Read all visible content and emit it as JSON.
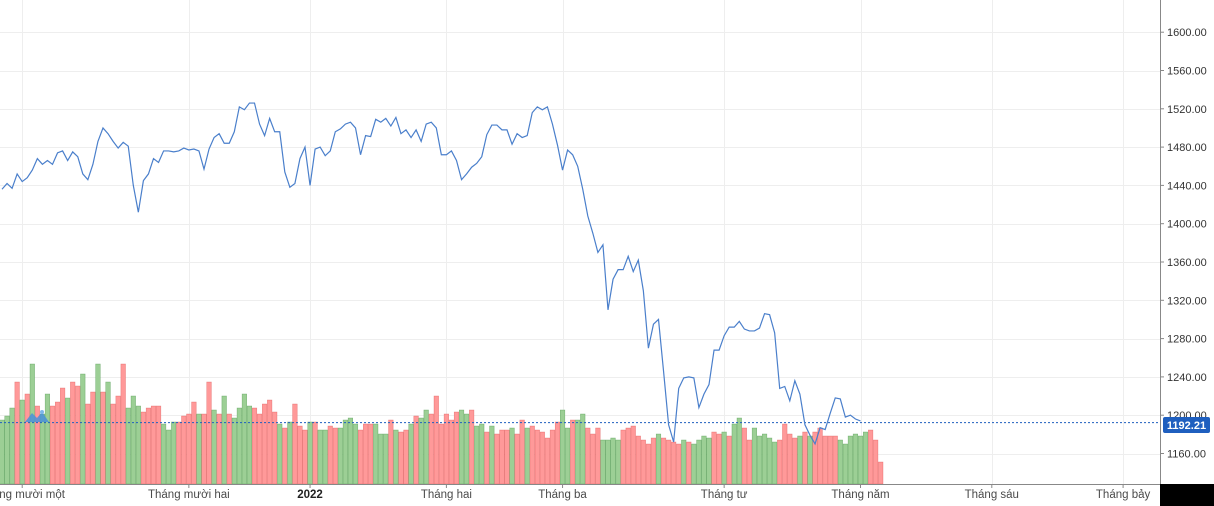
{
  "chart_data": {
    "type": "line",
    "title": "",
    "xlabel": "",
    "ylabel": "",
    "ylim": [
      1140,
      1640
    ],
    "y_ticks": [
      1160,
      1200,
      1240,
      1280,
      1320,
      1360,
      1400,
      1440,
      1480,
      1520,
      1560,
      1600
    ],
    "y_tick_labels": [
      "1160.00",
      "1200.00",
      "1240.00",
      "1280.00",
      "1320.00",
      "1360.00",
      "1400.00",
      "1440.00",
      "1480.00",
      "1520.00",
      "1560.00",
      "1600.00"
    ],
    "x_labels": [
      "Tháng mười một",
      "Tháng mười hai",
      "2022",
      "Tháng hai",
      "Tháng ba",
      "Tháng tư",
      "Tháng năm",
      "Tháng sáu",
      "Tháng bảy"
    ],
    "x_label_index": [
      4,
      37,
      61,
      88,
      111,
      143,
      170,
      196,
      222
    ],
    "last_value": 1192.21,
    "last_value_label": "1192.21",
    "grid": true,
    "colors": {
      "line": "#4a7fcb",
      "volume_up": "#9ccf95",
      "volume_down": "#ff9999",
      "volume_up_edge": "#3f8f3f",
      "volume_down_edge": "#d94b4b",
      "label_bg": "#1f5fbf",
      "grid": "#eeeeee"
    },
    "series": [
      {
        "values": [
          1436,
          1442,
          1437,
          1452,
          1444,
          1448,
          1456,
          1468,
          1462,
          1466,
          1462,
          1474,
          1476,
          1466,
          1475,
          1470,
          1452,
          1446,
          1462,
          1486,
          1500,
          1494,
          1486,
          1479,
          1485,
          1481,
          1440,
          1412,
          1445,
          1452,
          1468,
          1464,
          1476,
          1476,
          1475,
          1476,
          1479,
          1477,
          1478,
          1476,
          1457,
          1478,
          1490,
          1494,
          1484,
          1484,
          1496,
          1522,
          1519,
          1526,
          1526,
          1504,
          1492,
          1510,
          1496,
          1496,
          1454,
          1438,
          1442,
          1468,
          1480,
          1440,
          1478,
          1480,
          1471,
          1476,
          1496,
          1499,
          1504,
          1506,
          1500,
          1472,
          1492,
          1491,
          1509,
          1506,
          1510,
          1502,
          1511,
          1494,
          1498,
          1490,
          1498,
          1486,
          1504,
          1506,
          1500,
          1472,
          1472,
          1476,
          1466,
          1446,
          1452,
          1459,
          1463,
          1470,
          1493,
          1503,
          1503,
          1498,
          1498,
          1483,
          1494,
          1490,
          1492,
          1516,
          1522,
          1519,
          1522,
          1504,
          1482,
          1456,
          1477,
          1472,
          1460,
          1436,
          1408,
          1390,
          1370,
          1378,
          1310,
          1342,
          1352,
          1352,
          1366,
          1350,
          1362,
          1330,
          1270,
          1295,
          1300,
          1246,
          1190,
          1172,
          1228,
          1239,
          1240,
          1239,
          1208,
          1222,
          1232,
          1268,
          1268,
          1283,
          1292,
          1292,
          1298,
          1290,
          1288,
          1288,
          1291,
          1306,
          1305,
          1286,
          1228,
          1230,
          1215,
          1236,
          1222,
          1190,
          1179,
          1170,
          1187,
          1185,
          1202,
          1218,
          1217,
          1198,
          1200,
          1196,
          1194
        ]
      }
    ],
    "volume": {
      "directions": [
        "u",
        "u",
        "u",
        "d",
        "u",
        "d",
        "u",
        "d",
        "u",
        "u",
        "d",
        "d",
        "d",
        "u",
        "d",
        "d",
        "u",
        "d",
        "d",
        "u",
        "d",
        "u",
        "d",
        "d",
        "d",
        "u",
        "u",
        "u",
        "d",
        "d",
        "d",
        "d",
        "u",
        "u",
        "u",
        "d",
        "d",
        "d",
        "d",
        "u",
        "d",
        "d",
        "u",
        "d",
        "u",
        "d",
        "u",
        "u",
        "u",
        "u",
        "d",
        "d",
        "d",
        "d",
        "d",
        "u",
        "d",
        "u",
        "d",
        "d",
        "d",
        "u",
        "d",
        "u",
        "u",
        "d",
        "d",
        "u",
        "u",
        "u",
        "u",
        "d",
        "d",
        "d",
        "u",
        "u",
        "u",
        "d",
        "u",
        "d",
        "d",
        "u",
        "d",
        "u",
        "u",
        "d",
        "d",
        "d",
        "d",
        "d",
        "d",
        "u",
        "u",
        "d",
        "u",
        "u",
        "d",
        "u",
        "d",
        "d",
        "d",
        "u",
        "d",
        "d",
        "u",
        "d",
        "d",
        "d",
        "d",
        "d",
        "d",
        "u",
        "u",
        "d",
        "u",
        "u",
        "d",
        "d",
        "d",
        "u",
        "u",
        "u",
        "u",
        "d",
        "d",
        "d",
        "d",
        "d",
        "d",
        "d",
        "u",
        "d",
        "d",
        "d",
        "d",
        "u",
        "d",
        "u",
        "u",
        "u",
        "u",
        "d",
        "d",
        "u",
        "d",
        "u",
        "u",
        "d",
        "d",
        "u",
        "u",
        "u",
        "u",
        "u",
        "d",
        "d",
        "d",
        "d",
        "u",
        "d",
        "u",
        "d",
        "d",
        "d",
        "d",
        "d",
        "u",
        "u",
        "u",
        "u",
        "u",
        "u",
        "d",
        "d",
        "d"
      ],
      "values": [
        0.32,
        0.34,
        0.38,
        0.51,
        0.42,
        0.45,
        0.6,
        0.39,
        0.35,
        0.45,
        0.39,
        0.41,
        0.48,
        0.43,
        0.51,
        0.49,
        0.55,
        0.4,
        0.46,
        0.6,
        0.46,
        0.51,
        0.4,
        0.44,
        0.6,
        0.38,
        0.44,
        0.39,
        0.36,
        0.38,
        0.39,
        0.39,
        0.3,
        0.27,
        0.31,
        0.31,
        0.34,
        0.35,
        0.41,
        0.35,
        0.35,
        0.51,
        0.37,
        0.35,
        0.44,
        0.35,
        0.33,
        0.38,
        0.45,
        0.39,
        0.38,
        0.35,
        0.4,
        0.42,
        0.36,
        0.3,
        0.28,
        0.31,
        0.4,
        0.29,
        0.27,
        0.31,
        0.31,
        0.27,
        0.27,
        0.29,
        0.28,
        0.28,
        0.32,
        0.33,
        0.3,
        0.27,
        0.3,
        0.3,
        0.3,
        0.25,
        0.25,
        0.32,
        0.27,
        0.26,
        0.27,
        0.3,
        0.34,
        0.33,
        0.37,
        0.35,
        0.44,
        0.3,
        0.35,
        0.32,
        0.36,
        0.37,
        0.35,
        0.37,
        0.29,
        0.3,
        0.26,
        0.29,
        0.25,
        0.27,
        0.27,
        0.28,
        0.25,
        0.32,
        0.28,
        0.29,
        0.27,
        0.26,
        0.23,
        0.27,
        0.31,
        0.37,
        0.28,
        0.32,
        0.32,
        0.35,
        0.28,
        0.25,
        0.28,
        0.22,
        0.22,
        0.23,
        0.22,
        0.27,
        0.28,
        0.29,
        0.24,
        0.22,
        0.2,
        0.23,
        0.25,
        0.23,
        0.22,
        0.21,
        0.2,
        0.22,
        0.21,
        0.2,
        0.22,
        0.24,
        0.23,
        0.26,
        0.25,
        0.26,
        0.24,
        0.3,
        0.33,
        0.28,
        0.22,
        0.28,
        0.24,
        0.25,
        0.23,
        0.21,
        0.22,
        0.3,
        0.25,
        0.23,
        0.24,
        0.26,
        0.24,
        0.26,
        0.28,
        0.24,
        0.24,
        0.24,
        0.22,
        0.2,
        0.24,
        0.25,
        0.24,
        0.26,
        0.27,
        0.22,
        0.11
      ]
    }
  }
}
